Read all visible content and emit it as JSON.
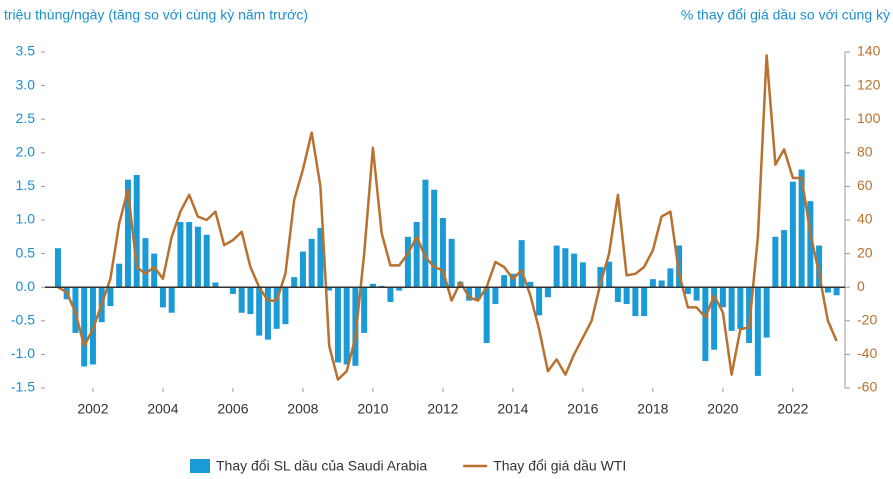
{
  "chart_data": {
    "type": "bar",
    "y_axis_label": "triệu thùng/ngày (tăng so với cùng kỳ năm trước)",
    "y2_axis_label": "% thay đổi giá dầu so với cùng kỳ",
    "xlim": [
      2000.63,
      2023.49
    ],
    "xticks": [
      2002,
      2004,
      2006,
      2008,
      2010,
      2012,
      2014,
      2016,
      2018,
      2020,
      2022
    ],
    "ylim": [
      -1.5,
      3.5
    ],
    "yticks": [
      {
        "value": 3.5,
        "label": "3.5"
      },
      {
        "value": 3,
        "label": "3.0"
      },
      2.5,
      {
        "value": 2,
        "label": "2.0"
      },
      1.5,
      {
        "value": 1,
        "label": "1.0"
      },
      0.5,
      {
        "value": 0,
        "label": "0.0"
      },
      -0.5,
      {
        "value": -1,
        "label": "-1.0"
      },
      -1.5
    ],
    "y2lim": [
      -60,
      140
    ],
    "y2ticks": [
      140,
      120,
      100,
      80,
      60,
      40,
      20,
      0,
      -20,
      -40,
      -60
    ],
    "x": [
      2001,
      2001.25,
      2001.5,
      2001.75,
      2002,
      2002.25,
      2002.5,
      2002.75,
      2003,
      2003.25,
      2003.5,
      2003.75,
      2004,
      2004.25,
      2004.5,
      2004.75,
      2005,
      2005.25,
      2005.5,
      2005.75,
      2006,
      2006.25,
      2006.5,
      2006.75,
      2007,
      2007.25,
      2007.5,
      2007.75,
      2008,
      2008.25,
      2008.5,
      2008.75,
      2009,
      2009.25,
      2009.5,
      2009.75,
      2010,
      2010.25,
      2010.5,
      2010.75,
      2011,
      2011.25,
      2011.5,
      2011.75,
      2012,
      2012.25,
      2012.5,
      2012.75,
      2013,
      2013.25,
      2013.5,
      2013.75,
      2014,
      2014.25,
      2014.5,
      2014.75,
      2015,
      2015.25,
      2015.5,
      2015.75,
      2016,
      2016.25,
      2016.5,
      2016.75,
      2017,
      2017.25,
      2017.5,
      2017.75,
      2018,
      2018.25,
      2018.5,
      2018.75,
      2019,
      2019.25,
      2019.5,
      2019.75,
      2020,
      2020.25,
      2020.5,
      2020.75,
      2021,
      2021.25,
      2021.5,
      2021.75,
      2022,
      2022.25,
      2022.5,
      2022.75,
      2023,
      2023.25
    ],
    "series": [
      {
        "name": "Thay đổi SL dầu của Saudi Arabia",
        "type": "bar",
        "color": "#1a9ad6",
        "values": [
          0.58,
          -0.18,
          -0.68,
          -1.18,
          -1.15,
          -0.52,
          -0.28,
          0.35,
          1.6,
          1.67,
          0.73,
          0.5,
          -0.3,
          -0.38,
          0.97,
          0.97,
          0.9,
          0.78,
          0.07,
          0,
          -0.1,
          -0.38,
          -0.4,
          -0.72,
          -0.78,
          -0.62,
          -0.55,
          0.15,
          0.53,
          0.72,
          0.88,
          -0.05,
          -1.12,
          -1.15,
          -1.17,
          -0.68,
          0.05,
          0.02,
          -0.22,
          -0.05,
          0.75,
          0.97,
          1.6,
          1.45,
          1.03,
          0.72,
          0.08,
          -0.2,
          -0.18,
          -0.83,
          -0.25,
          0.18,
          0.2,
          0.7,
          0.08,
          -0.42,
          -0.15,
          0.62,
          0.58,
          0.5,
          0.37,
          0,
          0.3,
          0.38,
          -0.22,
          -0.25,
          -0.43,
          -0.43,
          0.12,
          0.1,
          0.28,
          0.62,
          -0.1,
          -0.2,
          -1.1,
          -0.93,
          -0.3,
          -0.65,
          -0.62,
          -0.83,
          -1.32,
          -0.75,
          0.75,
          0.85,
          1.57,
          1.75,
          1.28,
          0.62,
          -0.08,
          -0.12
        ]
      },
      {
        "name": "Thay đổi giá dầu WTI",
        "type": "line",
        "axis": "y2",
        "color": "#b8712f",
        "values": [
          0,
          -3,
          -15,
          -35,
          -25,
          -10,
          5,
          38,
          58,
          12,
          8,
          12,
          5,
          30,
          45,
          55,
          42,
          40,
          45,
          25,
          28,
          33,
          12,
          0,
          -8,
          -8,
          8,
          52,
          70,
          92,
          60,
          -35,
          -55,
          -50,
          -30,
          20,
          83,
          32,
          13,
          13,
          20,
          30,
          18,
          12,
          10,
          -8,
          3,
          -6,
          -8,
          0,
          15,
          12,
          5,
          10,
          -5,
          -25,
          -50,
          -43,
          -52,
          -40,
          -30,
          -20,
          2,
          20,
          55,
          7,
          8,
          12,
          22,
          42,
          45,
          8,
          -12,
          -12,
          -18,
          -5,
          -15,
          -52,
          -25,
          -24,
          30,
          138,
          73,
          82,
          65,
          65,
          32,
          8,
          -20,
          -32
        ]
      }
    ]
  }
}
